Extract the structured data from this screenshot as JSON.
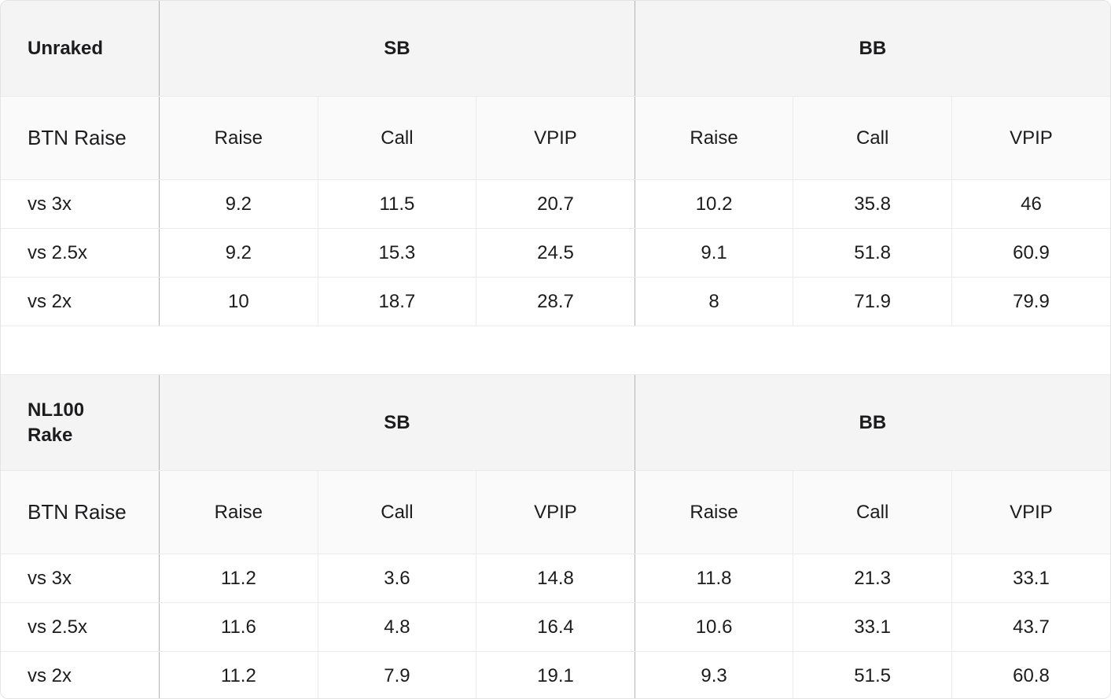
{
  "sections": [
    {
      "title": "Unraked",
      "groups": [
        "SB",
        "BB"
      ],
      "row_header": "BTN Raise",
      "columns": [
        "Raise",
        "Call",
        "VPIP",
        "Raise",
        "Call",
        "VPIP"
      ],
      "rows": [
        {
          "label": "vs 3x",
          "values": [
            "9.2",
            "11.5",
            "20.7",
            "10.2",
            "35.8",
            "46"
          ]
        },
        {
          "label": "vs 2.5x",
          "values": [
            "9.2",
            "15.3",
            "24.5",
            "9.1",
            "51.8",
            "60.9"
          ]
        },
        {
          "label": "vs 2x",
          "values": [
            "10",
            "18.7",
            "28.7",
            "8",
            "71.9",
            "79.9"
          ]
        }
      ]
    },
    {
      "title_lines": [
        "NL100",
        "Rake"
      ],
      "groups": [
        "SB",
        "BB"
      ],
      "row_header": "BTN Raise",
      "columns": [
        "Raise",
        "Call",
        "VPIP",
        "Raise",
        "Call",
        "VPIP"
      ],
      "rows": [
        {
          "label": "vs 3x",
          "values": [
            "11.2",
            "3.6",
            "14.8",
            "11.8",
            "21.3",
            "33.1"
          ]
        },
        {
          "label": "vs 2.5x",
          "values": [
            "11.6",
            "4.8",
            "16.4",
            "10.6",
            "33.1",
            "43.7"
          ]
        },
        {
          "label": "vs 2x",
          "values": [
            "11.2",
            "7.9",
            "19.1",
            "9.3",
            "51.5",
            "60.8"
          ]
        }
      ]
    }
  ]
}
